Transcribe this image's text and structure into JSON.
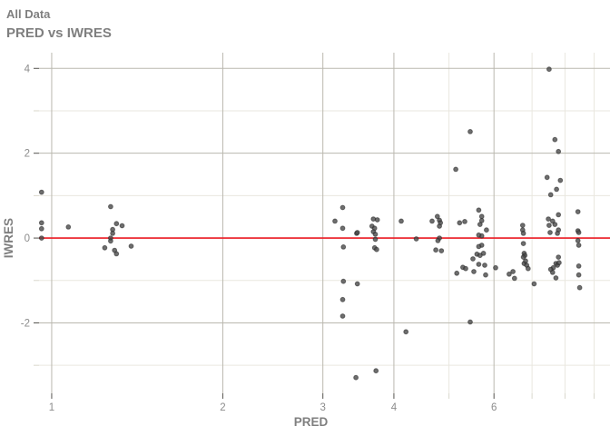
{
  "header": {
    "title": "All Data",
    "subtitle": "PRED vs IWRES"
  },
  "colors": {
    "title_text": "#7f7f7f",
    "tick_label_text": "#8c8c8c",
    "axis_title_text": "#7f7f7f",
    "major_grid": "#bab8af",
    "minor_grid": "#e9e7df",
    "major_tick": "#55534e",
    "minor_tick": "#d9d7cc",
    "ref_line": "#ec1c24",
    "point_fill": "#4a4a4a",
    "point_stroke": "#222222",
    "background": "#ffffff"
  },
  "chart_data": {
    "type": "scatter",
    "title": "All Data",
    "subtitle": "PRED vs IWRES",
    "xlabel": "PRED",
    "ylabel": "IWRES",
    "x_scale": "log10",
    "grid": "on",
    "legend": "none",
    "xlim": [
      0.95,
      9.6
    ],
    "ylim": [
      -3.66,
      4.37
    ],
    "x_major_breaks": [
      1,
      2,
      3,
      4,
      6
    ],
    "x_major_labels": [
      "1",
      "2",
      "3",
      "4",
      "6"
    ],
    "x_minor_breaks": [
      5,
      7,
      8,
      9
    ],
    "y_major_breaks": [
      -2,
      0,
      2,
      4
    ],
    "y_major_labels": [
      "-2",
      "0",
      "2",
      "4"
    ],
    "y_minor_breaks": [
      -3,
      -1,
      1,
      3
    ],
    "ref_line": {
      "y": 0
    },
    "points": [
      [
        0.96,
        1.08
      ],
      [
        0.96,
        0.36
      ],
      [
        0.96,
        0.22
      ],
      [
        0.96,
        0.0
      ],
      [
        1.07,
        0.26
      ],
      [
        1.27,
        0.74
      ],
      [
        1.3,
        0.34
      ],
      [
        1.33,
        0.29
      ],
      [
        1.28,
        0.2
      ],
      [
        1.28,
        0.11
      ],
      [
        1.27,
        0.0
      ],
      [
        1.27,
        -0.07
      ],
      [
        1.24,
        -0.23
      ],
      [
        1.29,
        -0.29
      ],
      [
        1.3,
        -0.37
      ],
      [
        1.38,
        -0.19
      ],
      [
        3.25,
        0.72
      ],
      [
        3.15,
        0.4
      ],
      [
        3.25,
        0.23
      ],
      [
        3.44,
        0.11
      ],
      [
        3.45,
        0.13
      ],
      [
        3.26,
        -0.21
      ],
      [
        3.26,
        -1.02
      ],
      [
        3.45,
        -1.08
      ],
      [
        3.25,
        -1.45
      ],
      [
        3.25,
        -1.84
      ],
      [
        3.43,
        -3.29
      ],
      [
        3.68,
        0.45
      ],
      [
        3.74,
        0.43
      ],
      [
        3.66,
        0.28
      ],
      [
        3.7,
        0.23
      ],
      [
        3.68,
        0.15
      ],
      [
        3.71,
        0.09
      ],
      [
        3.71,
        -0.03
      ],
      [
        3.7,
        -0.23
      ],
      [
        3.73,
        -0.27
      ],
      [
        3.72,
        -3.13
      ],
      [
        4.12,
        0.4
      ],
      [
        4.38,
        -0.02
      ],
      [
        4.2,
        -2.21
      ],
      [
        4.67,
        0.4
      ],
      [
        4.77,
        0.51
      ],
      [
        4.81,
        0.42
      ],
      [
        4.83,
        0.36
      ],
      [
        4.81,
        0.28
      ],
      [
        4.81,
        0.0
      ],
      [
        4.78,
        -0.06
      ],
      [
        4.74,
        -0.28
      ],
      [
        4.85,
        -0.3
      ],
      [
        5.14,
        1.62
      ],
      [
        5.45,
        2.51
      ],
      [
        5.22,
        0.36
      ],
      [
        5.33,
        0.39
      ],
      [
        5.64,
        0.66
      ],
      [
        5.71,
        0.51
      ],
      [
        5.71,
        0.41
      ],
      [
        5.67,
        0.32
      ],
      [
        5.82,
        0.19
      ],
      [
        5.71,
        0.05
      ],
      [
        5.64,
        0.07
      ],
      [
        5.71,
        -0.17
      ],
      [
        5.64,
        -0.2
      ],
      [
        5.6,
        -0.38
      ],
      [
        5.75,
        -0.36
      ],
      [
        5.67,
        -0.41
      ],
      [
        5.51,
        -0.49
      ],
      [
        5.64,
        -0.62
      ],
      [
        5.78,
        -0.64
      ],
      [
        5.29,
        -0.69
      ],
      [
        5.35,
        -0.72
      ],
      [
        5.53,
        -0.79
      ],
      [
        5.16,
        -0.83
      ],
      [
        5.8,
        -0.87
      ],
      [
        6.04,
        -0.7
      ],
      [
        5.45,
        -1.98
      ],
      [
        6.38,
        -0.85
      ],
      [
        6.48,
        -0.79
      ],
      [
        6.52,
        -0.95
      ],
      [
        6.74,
        0.3
      ],
      [
        6.74,
        0.19
      ],
      [
        6.76,
        0.11
      ],
      [
        6.76,
        -0.13
      ],
      [
        6.78,
        -0.36
      ],
      [
        6.8,
        -0.41
      ],
      [
        6.76,
        -0.45
      ],
      [
        6.78,
        -0.6
      ],
      [
        6.82,
        -0.54
      ],
      [
        6.85,
        -0.64
      ],
      [
        6.89,
        -0.72
      ],
      [
        7.06,
        -1.08
      ],
      [
        7.5,
        3.98
      ],
      [
        7.68,
        2.32
      ],
      [
        7.79,
        2.04
      ],
      [
        7.44,
        1.43
      ],
      [
        7.85,
        1.36
      ],
      [
        7.73,
        1.15
      ],
      [
        7.55,
        1.02
      ],
      [
        8.43,
        0.62
      ],
      [
        7.79,
        0.55
      ],
      [
        7.48,
        0.45
      ],
      [
        7.61,
        0.4
      ],
      [
        7.5,
        0.3
      ],
      [
        7.68,
        0.32
      ],
      [
        7.79,
        0.19
      ],
      [
        7.53,
        0.13
      ],
      [
        7.76,
        0.11
      ],
      [
        8.43,
        0.17
      ],
      [
        8.46,
        0.13
      ],
      [
        8.43,
        -0.06
      ],
      [
        8.46,
        -0.17
      ],
      [
        7.79,
        -0.45
      ],
      [
        7.71,
        -0.6
      ],
      [
        7.76,
        -0.64
      ],
      [
        7.81,
        -0.58
      ],
      [
        7.63,
        -0.7
      ],
      [
        7.55,
        -0.74
      ],
      [
        7.61,
        -0.81
      ],
      [
        7.71,
        -0.94
      ],
      [
        8.46,
        -0.66
      ],
      [
        8.46,
        -0.87
      ],
      [
        8.49,
        -1.17
      ]
    ]
  }
}
